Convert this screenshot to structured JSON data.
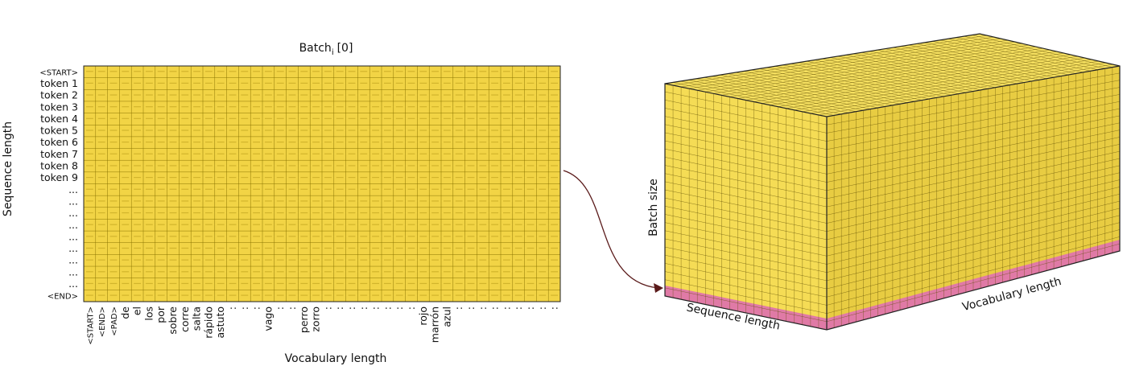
{
  "heatmap": {
    "title_main": "Batch",
    "title_sub": "i",
    "title_index": "[0]",
    "ylabel": "Sequence length",
    "xlabel": "Vocabulary length",
    "row_labels": [
      "<START>",
      "token 1",
      "token 2",
      "token 3",
      "token 4",
      "token 5",
      "token 6",
      "token 7",
      "token 8",
      "token 9",
      "...",
      "...",
      "...",
      "...",
      "...",
      "...",
      "...",
      "...",
      "...",
      "<END>"
    ],
    "col_labels": [
      "<START>",
      "<END>",
      "<PAD>",
      "de",
      "el",
      "los",
      "por",
      "sobre",
      "corre",
      "salta",
      "rápido",
      "astuto",
      ":",
      ":",
      ":",
      "vago",
      ":",
      ":",
      "perro",
      "zorro",
      ":",
      ":",
      ":",
      ":",
      ":",
      ":",
      ":",
      ":",
      "rojo",
      "marrón",
      "azul",
      ":",
      ":",
      ":",
      ":",
      ":",
      ":",
      ":",
      ":",
      ":"
    ],
    "cell_color": "#f2d445",
    "grid_color": "#8a7400"
  },
  "cube": {
    "height_label": "Batch size",
    "depth_label": "Sequence length",
    "width_label": "Vocabulary length",
    "top_color": "#f6e060",
    "front_color": "#f5dc55",
    "side_color": "#e8cc42",
    "highlight_color": "#e07aa6"
  },
  "colors": {
    "arrow": "#5a1a1a"
  }
}
